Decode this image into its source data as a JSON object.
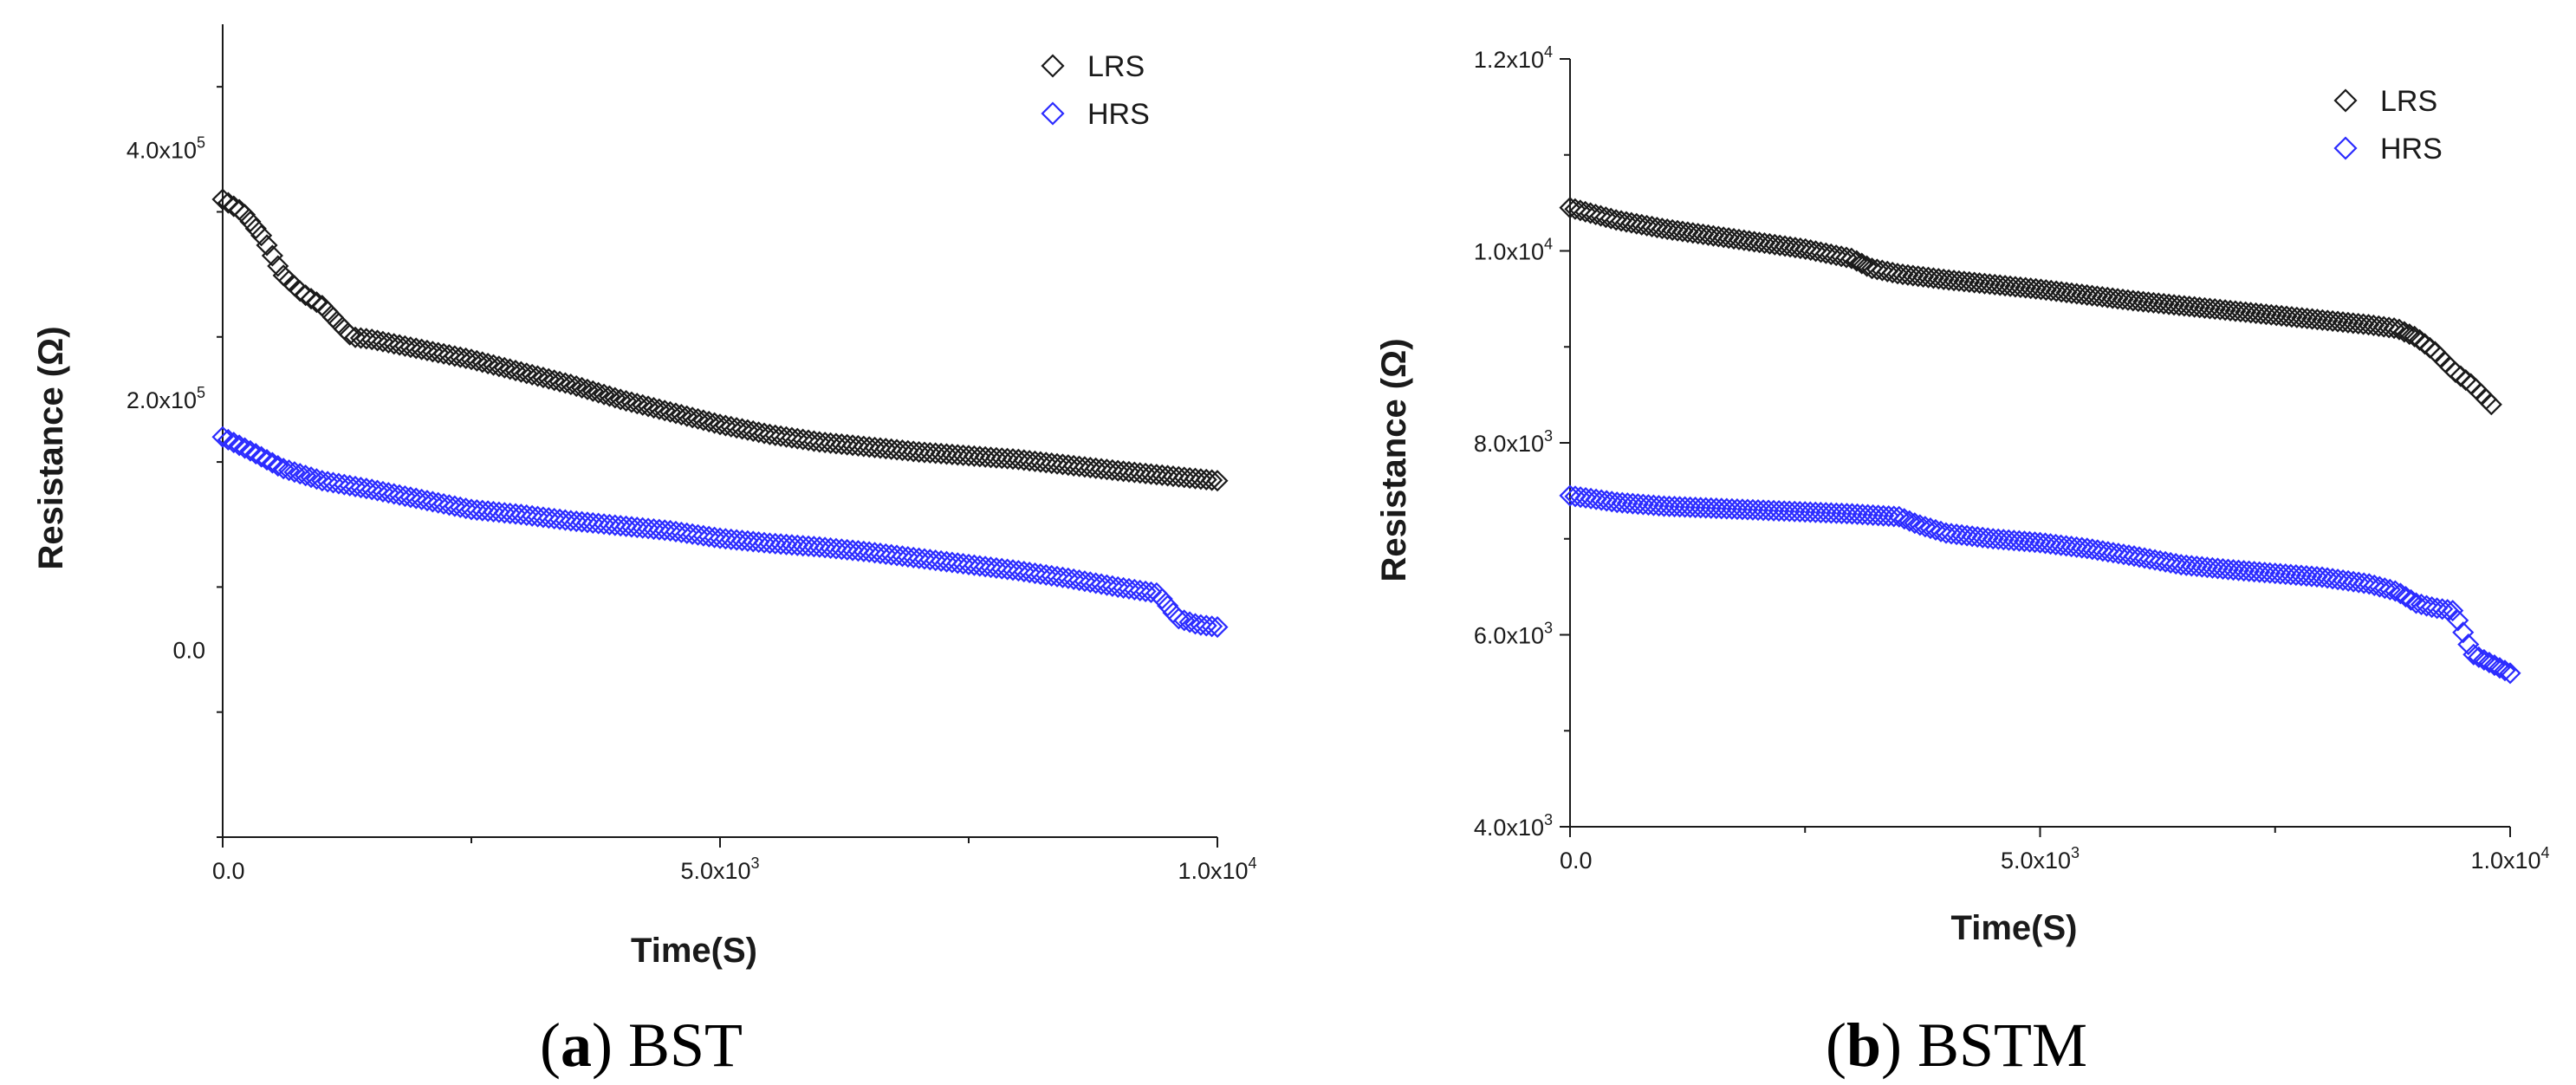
{
  "colors": {
    "lrs": "#1a1a1a",
    "hrs": "#2b2bff",
    "axis": "#1a1a1a"
  },
  "chart_data": [
    {
      "type": "scatter",
      "caption": {
        "open": "(",
        "letter": "a",
        "close": ")",
        "rest": " BST"
      },
      "xlabel": "Time(S)",
      "ylabel": "Resistance (Ω)",
      "xlim": [
        0,
        10000
      ],
      "ylim": [
        -150000,
        500000
      ],
      "xticks": [
        {
          "value": 0,
          "base": "0.0",
          "exp": ""
        },
        {
          "value": 5000,
          "base": "5.0x10",
          "exp": "3"
        },
        {
          "value": 10000,
          "base": "1.0x10",
          "exp": "4"
        }
      ],
      "yticks": [
        {
          "value": 0,
          "base": "0.0",
          "exp": ""
        },
        {
          "value": 200000,
          "base": "2.0x10",
          "exp": "5"
        },
        {
          "value": 400000,
          "base": "4.0x10",
          "exp": "5"
        }
      ],
      "legend": {
        "position": "top-right",
        "entries": [
          "LRS",
          "HRS"
        ]
      },
      "series": [
        {
          "name": "LRS",
          "x": [
            0,
            200,
            400,
            600,
            800,
            1000,
            1200,
            1300,
            1500,
            2000,
            2500,
            3000,
            3500,
            4000,
            4500,
            5000,
            5500,
            6000,
            7000,
            8000,
            9000,
            10000
          ],
          "y": [
            360000,
            350000,
            330000,
            300000,
            285000,
            275000,
            258000,
            250000,
            248000,
            240000,
            232000,
            222000,
            212000,
            200000,
            190000,
            180000,
            172000,
            166000,
            158000,
            152000,
            143000,
            135000
          ]
        },
        {
          "name": "HRS",
          "x": [
            0,
            300,
            600,
            1000,
            1500,
            2000,
            2500,
            3000,
            3500,
            4000,
            4500,
            5000,
            5500,
            6000,
            6500,
            7000,
            7500,
            8000,
            8500,
            9000,
            9400,
            9600,
            9800,
            10000
          ],
          "y": [
            170000,
            158000,
            145000,
            135000,
            128000,
            120000,
            112000,
            108000,
            103000,
            99000,
            95000,
            89000,
            85000,
            82000,
            78000,
            73000,
            68000,
            63000,
            57000,
            50000,
            45000,
            25000,
            20000,
            18000
          ]
        }
      ]
    },
    {
      "type": "scatter",
      "caption": {
        "open": "(",
        "letter": "b",
        "close": ")",
        "rest": " BSTM"
      },
      "xlabel": "Time(S)",
      "ylabel": "Resistance (Ω)",
      "xlim": [
        0,
        10000
      ],
      "ylim": [
        4000,
        12000
      ],
      "xticks": [
        {
          "value": 0,
          "base": "0.0",
          "exp": ""
        },
        {
          "value": 5000,
          "base": "5.0x10",
          "exp": "3"
        },
        {
          "value": 10000,
          "base": "1.0x10",
          "exp": "4"
        }
      ],
      "yticks": [
        {
          "value": 4000,
          "base": "4.0x10",
          "exp": "3"
        },
        {
          "value": 6000,
          "base": "6.0x10",
          "exp": "3"
        },
        {
          "value": 8000,
          "base": "8.0x10",
          "exp": "3"
        },
        {
          "value": 10000,
          "base": "1.0x10",
          "exp": "4"
        },
        {
          "value": 12000,
          "base": "1.2x10",
          "exp": "4"
        }
      ],
      "legend": {
        "position": "top-right",
        "entries": [
          "LRS",
          "HRS"
        ]
      },
      "series": [
        {
          "name": "LRS",
          "x": [
            0,
            500,
            1000,
            1500,
            2000,
            2500,
            3000,
            3200,
            3500,
            4000,
            4500,
            5000,
            5500,
            6000,
            6500,
            7000,
            7500,
            8000,
            8500,
            8800,
            9000,
            9200,
            9400,
            9600,
            9800
          ],
          "y": [
            10450,
            10320,
            10230,
            10160,
            10090,
            10020,
            9920,
            9820,
            9760,
            9700,
            9650,
            9600,
            9540,
            9480,
            9430,
            9380,
            9330,
            9280,
            9230,
            9190,
            9100,
            8950,
            8750,
            8600,
            8400
          ]
        },
        {
          "name": "HRS",
          "x": [
            0,
            500,
            1000,
            1500,
            2000,
            2500,
            3000,
            3500,
            3700,
            4000,
            4500,
            5000,
            5500,
            6000,
            6500,
            7000,
            7500,
            8000,
            8500,
            8800,
            9000,
            9200,
            9400,
            9600,
            9800,
            10000
          ],
          "y": [
            7450,
            7380,
            7340,
            7320,
            7300,
            7280,
            7260,
            7230,
            7150,
            7060,
            7000,
            6960,
            6900,
            6820,
            6730,
            6680,
            6640,
            6600,
            6530,
            6450,
            6330,
            6280,
            6250,
            5800,
            5700,
            5600
          ]
        }
      ]
    }
  ]
}
